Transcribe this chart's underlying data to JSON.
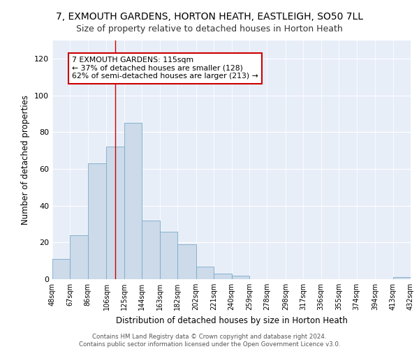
{
  "title_line1": "7, EXMOUTH GARDENS, HORTON HEATH, EASTLEIGH, SO50 7LL",
  "title_line2": "Size of property relative to detached houses in Horton Heath",
  "xlabel": "Distribution of detached houses by size in Horton Heath",
  "ylabel": "Number of detached properties",
  "bins": [
    48,
    67,
    86,
    106,
    125,
    144,
    163,
    182,
    202,
    221,
    240,
    259,
    278,
    298,
    317,
    336,
    355,
    374,
    394,
    413,
    432
  ],
  "counts": [
    11,
    24,
    63,
    72,
    85,
    32,
    26,
    19,
    7,
    3,
    2,
    0,
    0,
    0,
    0,
    0,
    0,
    0,
    0,
    1
  ],
  "bar_color": "#ccdaea",
  "bar_edge_color": "#7aaac8",
  "vline_x": 115,
  "vline_color": "#cc0000",
  "annotation_text": "7 EXMOUTH GARDENS: 115sqm\n← 37% of detached houses are smaller (128)\n62% of semi-detached houses are larger (213) →",
  "annotation_box_color": "#ffffff",
  "annotation_box_edge": "#cc0000",
  "ylim": [
    0,
    130
  ],
  "yticks": [
    0,
    20,
    40,
    60,
    80,
    100,
    120
  ],
  "background_color": "#e8eef8",
  "footer_text": "Contains HM Land Registry data © Crown copyright and database right 2024.\nContains public sector information licensed under the Open Government Licence v3.0.",
  "tick_labels": [
    "48sqm",
    "67sqm",
    "86sqm",
    "106sqm",
    "125sqm",
    "144sqm",
    "163sqm",
    "182sqm",
    "202sqm",
    "221sqm",
    "240sqm",
    "259sqm",
    "278sqm",
    "298sqm",
    "317sqm",
    "336sqm",
    "355sqm",
    "374sqm",
    "394sqm",
    "413sqm",
    "432sqm"
  ]
}
